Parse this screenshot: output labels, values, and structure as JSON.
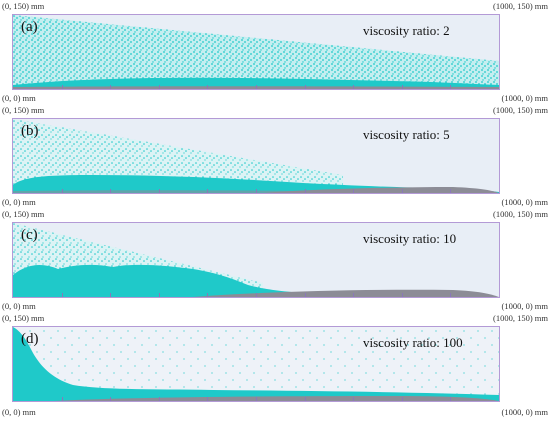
{
  "coords": {
    "top_left": "(0, 150) mm",
    "top_right": "(1000, 150) mm",
    "bottom_left": "(0, 0) mm",
    "bottom_right": "(1000, 0) mm"
  },
  "panels": [
    {
      "label": "(a)",
      "ratio_text": "viscosity ratio: 2"
    },
    {
      "label": "(b)",
      "ratio_text": "viscosity ratio: 5"
    },
    {
      "label": "(c)",
      "ratio_text": "viscosity ratio: 10"
    },
    {
      "label": "(d)",
      "ratio_text": "viscosity ratio: 100"
    }
  ],
  "colors": {
    "particles": "#1fc9c9",
    "bed": "#8c8c96",
    "frame": "#b39ad6"
  }
}
